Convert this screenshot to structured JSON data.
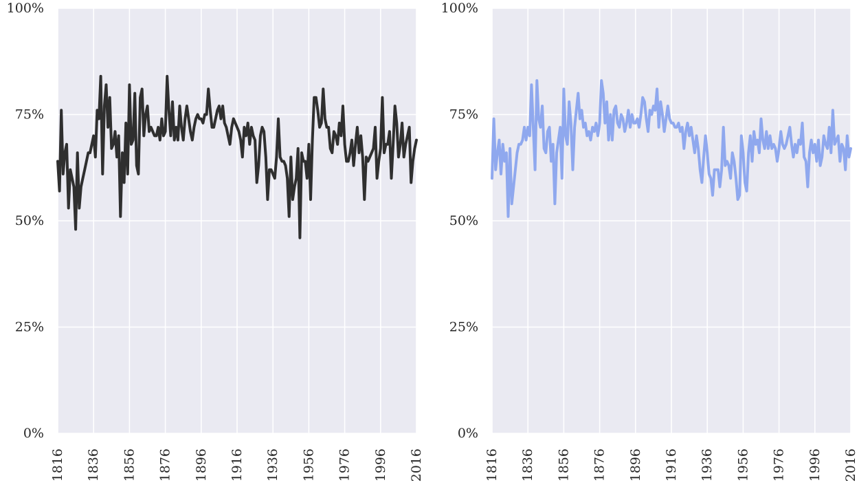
{
  "chart_data": [
    {
      "type": "line",
      "color": "#2f2f2f",
      "title": "",
      "xlabel": "",
      "ylabel": "",
      "xlim": [
        1816,
        2016
      ],
      "ylim": [
        0,
        100
      ],
      "xticks": [
        1816,
        1836,
        1856,
        1876,
        1896,
        1916,
        1936,
        1956,
        1976,
        1996,
        2016
      ],
      "yticks": [
        0,
        25,
        50,
        75,
        100
      ],
      "ytick_labels": [
        "0%",
        "25%",
        "50%",
        "75%",
        "100%"
      ],
      "grid": true,
      "series": [
        {
          "x": [
            1816,
            1817,
            1818,
            1819,
            1820,
            1821,
            1822,
            1823,
            1824,
            1825,
            1826,
            1827,
            1828,
            1829,
            1830,
            1831,
            1832,
            1833,
            1834,
            1835,
            1836,
            1837,
            1838,
            1839,
            1840,
            1841,
            1842,
            1843,
            1844,
            1845,
            1846,
            1847,
            1848,
            1849,
            1850,
            1851,
            1852,
            1853,
            1854,
            1855,
            1856,
            1857,
            1858,
            1859,
            1860,
            1861,
            1862,
            1863,
            1864,
            1865,
            1866,
            1867,
            1868,
            1869,
            1870,
            1871,
            1872,
            1873,
            1874,
            1875,
            1876,
            1877,
            1878,
            1879,
            1880,
            1881,
            1882,
            1883,
            1884,
            1885,
            1886,
            1887,
            1888,
            1889,
            1890,
            1891,
            1892,
            1893,
            1894,
            1895,
            1896,
            1897,
            1898,
            1899,
            1900,
            1901,
            1902,
            1903,
            1904,
            1905,
            1906,
            1907,
            1908,
            1909,
            1910,
            1911,
            1912,
            1913,
            1914,
            1915,
            1916,
            1917,
            1918,
            1919,
            1920,
            1921,
            1922,
            1923,
            1924,
            1925,
            1926,
            1927,
            1928,
            1929,
            1930,
            1931,
            1932,
            1933,
            1934,
            1935,
            1936,
            1937,
            1938,
            1939,
            1940,
            1941,
            1942,
            1943,
            1944,
            1945,
            1946,
            1947,
            1948,
            1949,
            1950,
            1951,
            1952,
            1953,
            1954,
            1955,
            1956,
            1957,
            1958,
            1959,
            1960,
            1961,
            1962,
            1963,
            1964,
            1965,
            1966,
            1967,
            1968,
            1969,
            1970,
            1971,
            1972,
            1973,
            1974,
            1975,
            1976,
            1977,
            1978,
            1979,
            1980,
            1981,
            1982,
            1983,
            1984,
            1985,
            1986,
            1987,
            1988,
            1989,
            1990,
            1991,
            1992,
            1993,
            1994,
            1995,
            1996,
            1997,
            1998,
            1999,
            2000,
            2001,
            2002,
            2003,
            2004,
            2005,
            2006,
            2007,
            2008,
            2009,
            2010,
            2011,
            2012,
            2013,
            2014,
            2015,
            2016
          ],
          "y": [
            64,
            57,
            76,
            61,
            66,
            68,
            53,
            62,
            60,
            58,
            48,
            66,
            53,
            58,
            60,
            62,
            64,
            66,
            66,
            68,
            70,
            65,
            76,
            74,
            84,
            61,
            77,
            82,
            72,
            79,
            67,
            68,
            71,
            65,
            70,
            51,
            66,
            59,
            73,
            61,
            82,
            68,
            69,
            80,
            63,
            61,
            79,
            81,
            70,
            75,
            77,
            71,
            72,
            71,
            70,
            70,
            72,
            69,
            74,
            70,
            71,
            84,
            76,
            70,
            78,
            69,
            72,
            69,
            77,
            72,
            69,
            74,
            77,
            74,
            71,
            69,
            72,
            74,
            75,
            74,
            74,
            73,
            75,
            75,
            81,
            76,
            72,
            72,
            74,
            76,
            77,
            74,
            77,
            73,
            72,
            70,
            68,
            72,
            74,
            73,
            72,
            71,
            69,
            65,
            72,
            70,
            73,
            68,
            72,
            70,
            69,
            59,
            63,
            70,
            72,
            71,
            65,
            55,
            62,
            62,
            61,
            60,
            65,
            74,
            65,
            64,
            64,
            63,
            60,
            51,
            65,
            55,
            58,
            60,
            67,
            46,
            66,
            64,
            64,
            60,
            68,
            55,
            69,
            79,
            79,
            76,
            72,
            73,
            81,
            74,
            72,
            72,
            67,
            66,
            71,
            70,
            68,
            73,
            70,
            77,
            68,
            64,
            64,
            66,
            69,
            63,
            68,
            72,
            66,
            70,
            65,
            55,
            65,
            64,
            65,
            66,
            67,
            72,
            60,
            64,
            67,
            79,
            66,
            68,
            68,
            71,
            60,
            68,
            77,
            73,
            65,
            68,
            73,
            65,
            68,
            70,
            72,
            59,
            64,
            67,
            69
          ]
        }
      ]
    },
    {
      "type": "line",
      "color": "#8fa8ee",
      "title": "",
      "xlabel": "",
      "ylabel": "",
      "xlim": [
        1816,
        2016
      ],
      "ylim": [
        0,
        100
      ],
      "xticks": [
        1816,
        1836,
        1856,
        1876,
        1896,
        1916,
        1936,
        1956,
        1976,
        1996,
        2016
      ],
      "yticks": [
        0,
        25,
        50,
        75,
        100
      ],
      "ytick_labels": [
        "0%",
        "25%",
        "50%",
        "75%",
        "100%"
      ],
      "grid": true,
      "series": [
        {
          "x": [
            1816,
            1817,
            1818,
            1819,
            1820,
            1821,
            1822,
            1823,
            1824,
            1825,
            1826,
            1827,
            1828,
            1829,
            1830,
            1831,
            1832,
            1833,
            1834,
            1835,
            1836,
            1837,
            1838,
            1839,
            1840,
            1841,
            1842,
            1843,
            1844,
            1845,
            1846,
            1847,
            1848,
            1849,
            1850,
            1851,
            1852,
            1853,
            1854,
            1855,
            1856,
            1857,
            1858,
            1859,
            1860,
            1861,
            1862,
            1863,
            1864,
            1865,
            1866,
            1867,
            1868,
            1869,
            1870,
            1871,
            1872,
            1873,
            1874,
            1875,
            1876,
            1877,
            1878,
            1879,
            1880,
            1881,
            1882,
            1883,
            1884,
            1885,
            1886,
            1887,
            1888,
            1889,
            1890,
            1891,
            1892,
            1893,
            1894,
            1895,
            1896,
            1897,
            1898,
            1899,
            1900,
            1901,
            1902,
            1903,
            1904,
            1905,
            1906,
            1907,
            1908,
            1909,
            1910,
            1911,
            1912,
            1913,
            1914,
            1915,
            1916,
            1917,
            1918,
            1919,
            1920,
            1921,
            1922,
            1923,
            1924,
            1925,
            1926,
            1927,
            1928,
            1929,
            1930,
            1931,
            1932,
            1933,
            1934,
            1935,
            1936,
            1937,
            1938,
            1939,
            1940,
            1941,
            1942,
            1943,
            1944,
            1945,
            1946,
            1947,
            1948,
            1949,
            1950,
            1951,
            1952,
            1953,
            1954,
            1955,
            1956,
            1957,
            1958,
            1959,
            1960,
            1961,
            1962,
            1963,
            1964,
            1965,
            1966,
            1967,
            1968,
            1969,
            1970,
            1971,
            1972,
            1973,
            1974,
            1975,
            1976,
            1977,
            1978,
            1979,
            1980,
            1981,
            1982,
            1983,
            1984,
            1985,
            1986,
            1987,
            1988,
            1989,
            1990,
            1991,
            1992,
            1993,
            1994,
            1995,
            1996,
            1997,
            1998,
            1999,
            2000,
            2001,
            2002,
            2003,
            2004,
            2005,
            2006,
            2007,
            2008,
            2009,
            2010,
            2011,
            2012,
            2013,
            2014,
            2015,
            2016
          ],
          "y": [
            60,
            74,
            62,
            66,
            69,
            61,
            68,
            64,
            66,
            51,
            67,
            54,
            58,
            62,
            66,
            68,
            68,
            69,
            72,
            69,
            72,
            70,
            82,
            72,
            62,
            83,
            74,
            72,
            77,
            67,
            66,
            71,
            72,
            64,
            68,
            54,
            66,
            69,
            72,
            60,
            81,
            70,
            68,
            78,
            73,
            62,
            72,
            76,
            80,
            74,
            76,
            72,
            73,
            70,
            71,
            69,
            72,
            71,
            73,
            70,
            73,
            83,
            80,
            73,
            78,
            69,
            75,
            69,
            76,
            77,
            73,
            72,
            75,
            74,
            71,
            73,
            76,
            72,
            75,
            73,
            73,
            74,
            72,
            75,
            79,
            78,
            74,
            71,
            76,
            75,
            77,
            76,
            81,
            72,
            78,
            75,
            71,
            74,
            77,
            74,
            73,
            73,
            72,
            72,
            73,
            71,
            72,
            67,
            71,
            73,
            70,
            72,
            69,
            66,
            70,
            67,
            62,
            59,
            65,
            70,
            66,
            61,
            60,
            56,
            62,
            62,
            62,
            58,
            62,
            72,
            63,
            64,
            63,
            60,
            66,
            64,
            60,
            55,
            56,
            70,
            66,
            59,
            57,
            66,
            70,
            64,
            71,
            68,
            69,
            66,
            74,
            69,
            67,
            71,
            67,
            70,
            67,
            68,
            67,
            64,
            67,
            71,
            68,
            67,
            68,
            70,
            72,
            68,
            65,
            68,
            66,
            69,
            68,
            73,
            65,
            64,
            58,
            66,
            69,
            66,
            68,
            64,
            69,
            63,
            65,
            70,
            68,
            67,
            72,
            66,
            76,
            68,
            69,
            70,
            64,
            68,
            67,
            62,
            70,
            65,
            67
          ]
        }
      ]
    }
  ]
}
